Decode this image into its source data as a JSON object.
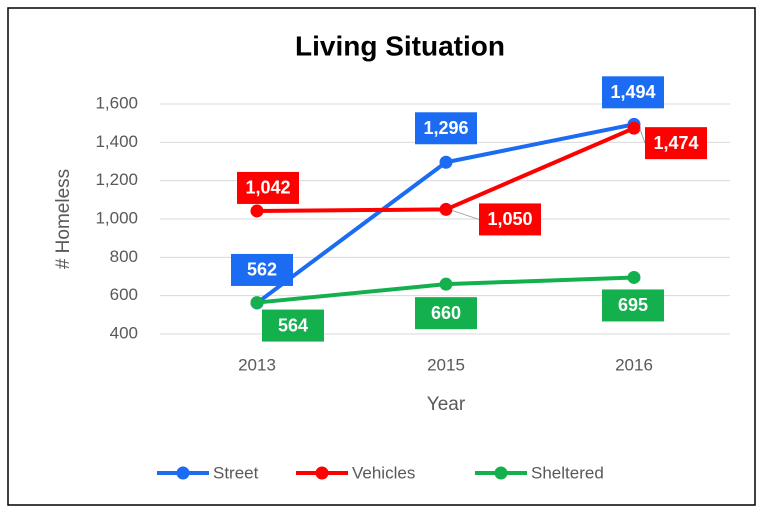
{
  "chart_data": {
    "type": "line",
    "title": "Living Situation",
    "x_label": "Year",
    "y_label": "# Homeless",
    "categories": [
      "2013",
      "2015",
      "2016"
    ],
    "series": [
      {
        "name": "Street",
        "color": "#1b6cf2",
        "values": [
          562,
          1296,
          1494
        ],
        "value_labels": [
          "562",
          "1,296",
          "1,494"
        ]
      },
      {
        "name": "Vehicles",
        "color": "#ff0000",
        "values": [
          1042,
          1050,
          1474
        ],
        "value_labels": [
          "1,042",
          "1,050",
          "1,474"
        ]
      },
      {
        "name": "Sheltered",
        "color": "#14b04e",
        "values": [
          564,
          660,
          695
        ],
        "value_labels": [
          "564",
          "660",
          "695"
        ]
      }
    ],
    "ylim": [
      400,
      1600
    ],
    "yticks": [
      {
        "value": 400,
        "label": "400"
      },
      {
        "value": 600,
        "label": "600"
      },
      {
        "value": 800,
        "label": "800"
      },
      {
        "value": 1000,
        "label": "1,000"
      },
      {
        "value": 1200,
        "label": "1,200"
      },
      {
        "value": 1400,
        "label": "1,400"
      },
      {
        "value": 1600,
        "label": "1,600"
      }
    ],
    "grid": true,
    "legend": "bottom"
  }
}
